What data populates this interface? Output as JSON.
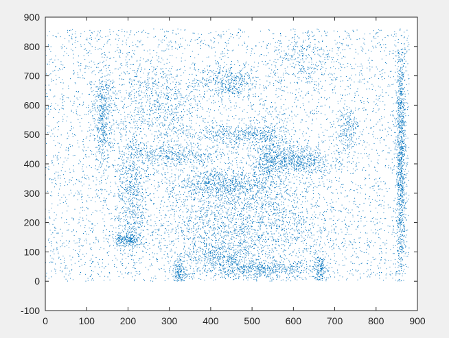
{
  "window": {
    "background": "#f0f0f0"
  },
  "chart_data": {
    "type": "scatter",
    "title": "",
    "xlabel": "",
    "ylabel": "",
    "xlim": [
      0,
      900
    ],
    "ylim": [
      -100,
      900
    ],
    "xticks": [
      0,
      100,
      200,
      300,
      400,
      500,
      600,
      700,
      800,
      900
    ],
    "yticks": [
      -100,
      0,
      100,
      200,
      300,
      400,
      500,
      600,
      700,
      800,
      900
    ],
    "grid": false,
    "legend": "none",
    "marker": "point",
    "series": [
      {
        "name": "",
        "color": "#0072bd",
        "count_estimate": 60000,
        "extent": {
          "x": [
            0,
            880
          ],
          "y": [
            0,
            860
          ]
        },
        "description": ""
      }
    ]
  }
}
